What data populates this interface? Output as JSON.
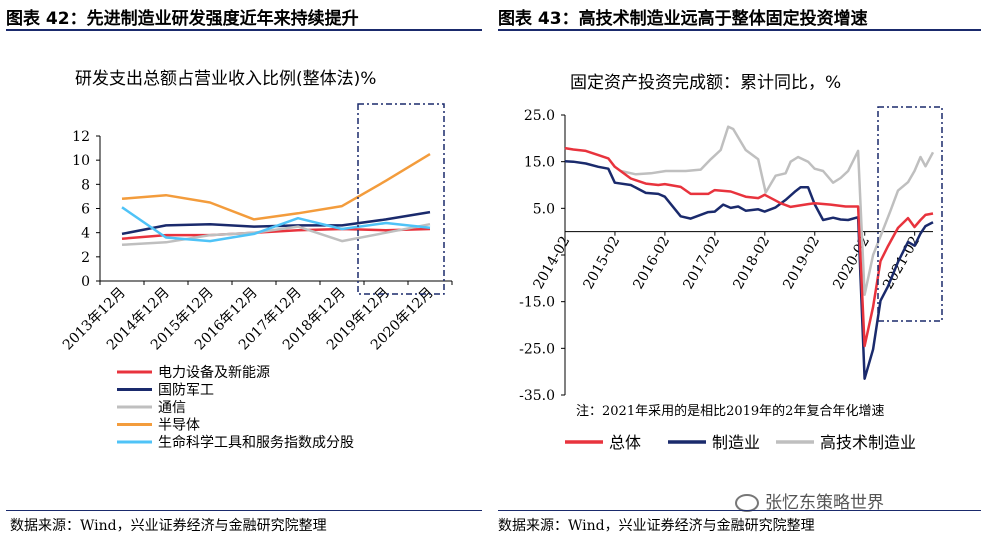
{
  "left_panel": {
    "header": "图表 42：先进制造业研发强度近年来持续提升",
    "chart_title": "研发支出总额占营业收入比例(整体法)%",
    "source": "数据来源：Wind，兴业证券经济与金融研究院整理"
  },
  "right_panel": {
    "header": "图表 43：高技术制造业远高于整体固定投资增速",
    "chart_title": "固定资产投资完成额：累计同比，%",
    "note": "注：2021年采用的是相比2019年的2年复合年化增速",
    "source": "数据来源：Wind，兴业证券经济与金融研究院整理"
  },
  "watermark": {
    "text": "张忆东策略世界"
  },
  "chart_data": [
    {
      "type": "line",
      "title": "研发支出总额占营业收入比例(整体法)%",
      "categories": [
        "2013年12月",
        "2014年12月",
        "2015年12月",
        "2016年12月",
        "2017年12月",
        "2018年12月",
        "2019年12月",
        "2020年12月"
      ],
      "ylim": [
        0,
        12
      ],
      "yticks": [
        0,
        2,
        4,
        6,
        8,
        10,
        12
      ],
      "legend_position": "bottom",
      "series": [
        {
          "name": "电力设备及新能源",
          "color": "#e8333d",
          "values": [
            3.5,
            3.8,
            3.8,
            4.0,
            4.2,
            4.3,
            4.2,
            4.3
          ]
        },
        {
          "name": "国防军工",
          "color": "#1a2a6c",
          "values": [
            3.9,
            4.6,
            4.7,
            4.5,
            4.6,
            4.6,
            5.1,
            5.7
          ]
        },
        {
          "name": "通信",
          "color": "#bfbfbf",
          "values": [
            3.0,
            3.2,
            3.8,
            4.0,
            4.5,
            3.3,
            4.0,
            4.7
          ]
        },
        {
          "name": "半导体",
          "color": "#f39c3c",
          "values": [
            6.8,
            7.1,
            6.5,
            5.1,
            5.6,
            6.2,
            8.3,
            10.5
          ]
        },
        {
          "name": "生命科学工具和服务指数成分股",
          "color": "#4fc3f7",
          "values": [
            6.1,
            3.6,
            3.3,
            3.9,
            5.2,
            4.3,
            4.8,
            4.4
          ]
        }
      ]
    },
    {
      "type": "line",
      "title": "固定资产投资完成额：累计同比，%",
      "x_ticks": [
        "2014-02",
        "2015-02",
        "2016-02",
        "2017-02",
        "2018-02",
        "2019-02",
        "2020-02",
        "2021-02"
      ],
      "ylim": [
        -35,
        25
      ],
      "yticks": [
        25.0,
        15.0,
        5.0,
        -5.0,
        -15.0,
        -25.0,
        -35.0
      ],
      "y_ticklabels": [
        "25.0",
        "15.0",
        "5.0",
        "",
        "-15.0",
        "-25.0",
        "-35.0"
      ],
      "x_start": 2014.083,
      "x_end": 2021.45,
      "legend_position": "bottom",
      "series": [
        {
          "name": "总体",
          "color": "#e8333d",
          "points": [
            [
              2014.08,
              17.9
            ],
            [
              2014.25,
              17.6
            ],
            [
              2014.5,
              17.3
            ],
            [
              2014.75,
              16.4
            ],
            [
              2014.95,
              15.7
            ],
            [
              2015.08,
              13.9
            ],
            [
              2015.4,
              11.4
            ],
            [
              2015.7,
              10.3
            ],
            [
              2015.95,
              10.0
            ],
            [
              2016.08,
              10.2
            ],
            [
              2016.4,
              9.6
            ],
            [
              2016.6,
              8.1
            ],
            [
              2016.95,
              8.1
            ],
            [
              2017.08,
              8.9
            ],
            [
              2017.4,
              8.6
            ],
            [
              2017.7,
              7.5
            ],
            [
              2017.95,
              7.2
            ],
            [
              2018.08,
              7.9
            ],
            [
              2018.4,
              6.1
            ],
            [
              2018.6,
              5.3
            ],
            [
              2018.95,
              5.9
            ],
            [
              2019.08,
              6.1
            ],
            [
              2019.4,
              5.8
            ],
            [
              2019.7,
              5.4
            ],
            [
              2019.95,
              5.4
            ],
            [
              2020.08,
              -24.5
            ],
            [
              2020.25,
              -16.1
            ],
            [
              2020.4,
              -6.3
            ],
            [
              2020.55,
              -3.1
            ],
            [
              2020.75,
              0.8
            ],
            [
              2020.95,
              2.9
            ],
            [
              2021.08,
              1.0
            ],
            [
              2021.2,
              2.5
            ],
            [
              2021.3,
              3.6
            ],
            [
              2021.45,
              3.9
            ]
          ]
        },
        {
          "name": "制造业",
          "color": "#1a2a6c",
          "points": [
            [
              2014.08,
              15.1
            ],
            [
              2014.25,
              15.0
            ],
            [
              2014.5,
              14.6
            ],
            [
              2014.75,
              13.9
            ],
            [
              2014.95,
              13.5
            ],
            [
              2015.08,
              10.5
            ],
            [
              2015.4,
              10.0
            ],
            [
              2015.7,
              8.3
            ],
            [
              2015.95,
              8.1
            ],
            [
              2016.08,
              7.5
            ],
            [
              2016.4,
              3.3
            ],
            [
              2016.6,
              2.8
            ],
            [
              2016.95,
              4.2
            ],
            [
              2017.08,
              4.3
            ],
            [
              2017.25,
              5.8
            ],
            [
              2017.4,
              5.1
            ],
            [
              2017.55,
              5.4
            ],
            [
              2017.7,
              4.5
            ],
            [
              2017.95,
              4.8
            ],
            [
              2018.08,
              4.3
            ],
            [
              2018.3,
              5.2
            ],
            [
              2018.5,
              6.8
            ],
            [
              2018.7,
              8.7
            ],
            [
              2018.8,
              9.5
            ],
            [
              2018.95,
              9.5
            ],
            [
              2019.08,
              5.9
            ],
            [
              2019.25,
              2.5
            ],
            [
              2019.45,
              3.0
            ],
            [
              2019.6,
              2.6
            ],
            [
              2019.75,
              2.5
            ],
            [
              2019.95,
              3.1
            ],
            [
              2020.08,
              -31.5
            ],
            [
              2020.25,
              -25.2
            ],
            [
              2020.4,
              -14.8
            ],
            [
              2020.55,
              -11.7
            ],
            [
              2020.75,
              -6.5
            ],
            [
              2020.95,
              -2.2
            ],
            [
              2021.08,
              -3.0
            ],
            [
              2021.2,
              -0.4
            ],
            [
              2021.3,
              1.2
            ],
            [
              2021.45,
              2.0
            ]
          ]
        },
        {
          "name": "高技术制造业",
          "color": "#bfbfbf",
          "points": [
            [
              2015.2,
              13.0
            ],
            [
              2015.5,
              12.3
            ],
            [
              2015.8,
              12.5
            ],
            [
              2016.1,
              13.0
            ],
            [
              2016.5,
              13.0
            ],
            [
              2016.8,
              13.3
            ],
            [
              2017.0,
              15.5
            ],
            [
              2017.2,
              17.5
            ],
            [
              2017.35,
              22.5
            ],
            [
              2017.45,
              22.0
            ],
            [
              2017.7,
              17.5
            ],
            [
              2017.95,
              15.5
            ],
            [
              2018.1,
              8.4
            ],
            [
              2018.3,
              12.0
            ],
            [
              2018.5,
              12.5
            ],
            [
              2018.6,
              15.0
            ],
            [
              2018.75,
              16.0
            ],
            [
              2018.95,
              15.0
            ],
            [
              2019.08,
              13.5
            ],
            [
              2019.25,
              13.0
            ],
            [
              2019.45,
              10.5
            ],
            [
              2019.6,
              11.5
            ],
            [
              2019.75,
              13.0
            ],
            [
              2019.95,
              17.3
            ],
            [
              2020.08,
              -13.5
            ],
            [
              2020.25,
              -5.0
            ],
            [
              2020.4,
              -1.0
            ],
            [
              2020.6,
              4.5
            ],
            [
              2020.75,
              8.8
            ],
            [
              2020.95,
              10.6
            ],
            [
              2021.08,
              13.0
            ],
            [
              2021.2,
              16.0
            ],
            [
              2021.3,
              14.0
            ],
            [
              2021.45,
              17.0
            ]
          ]
        }
      ]
    }
  ]
}
